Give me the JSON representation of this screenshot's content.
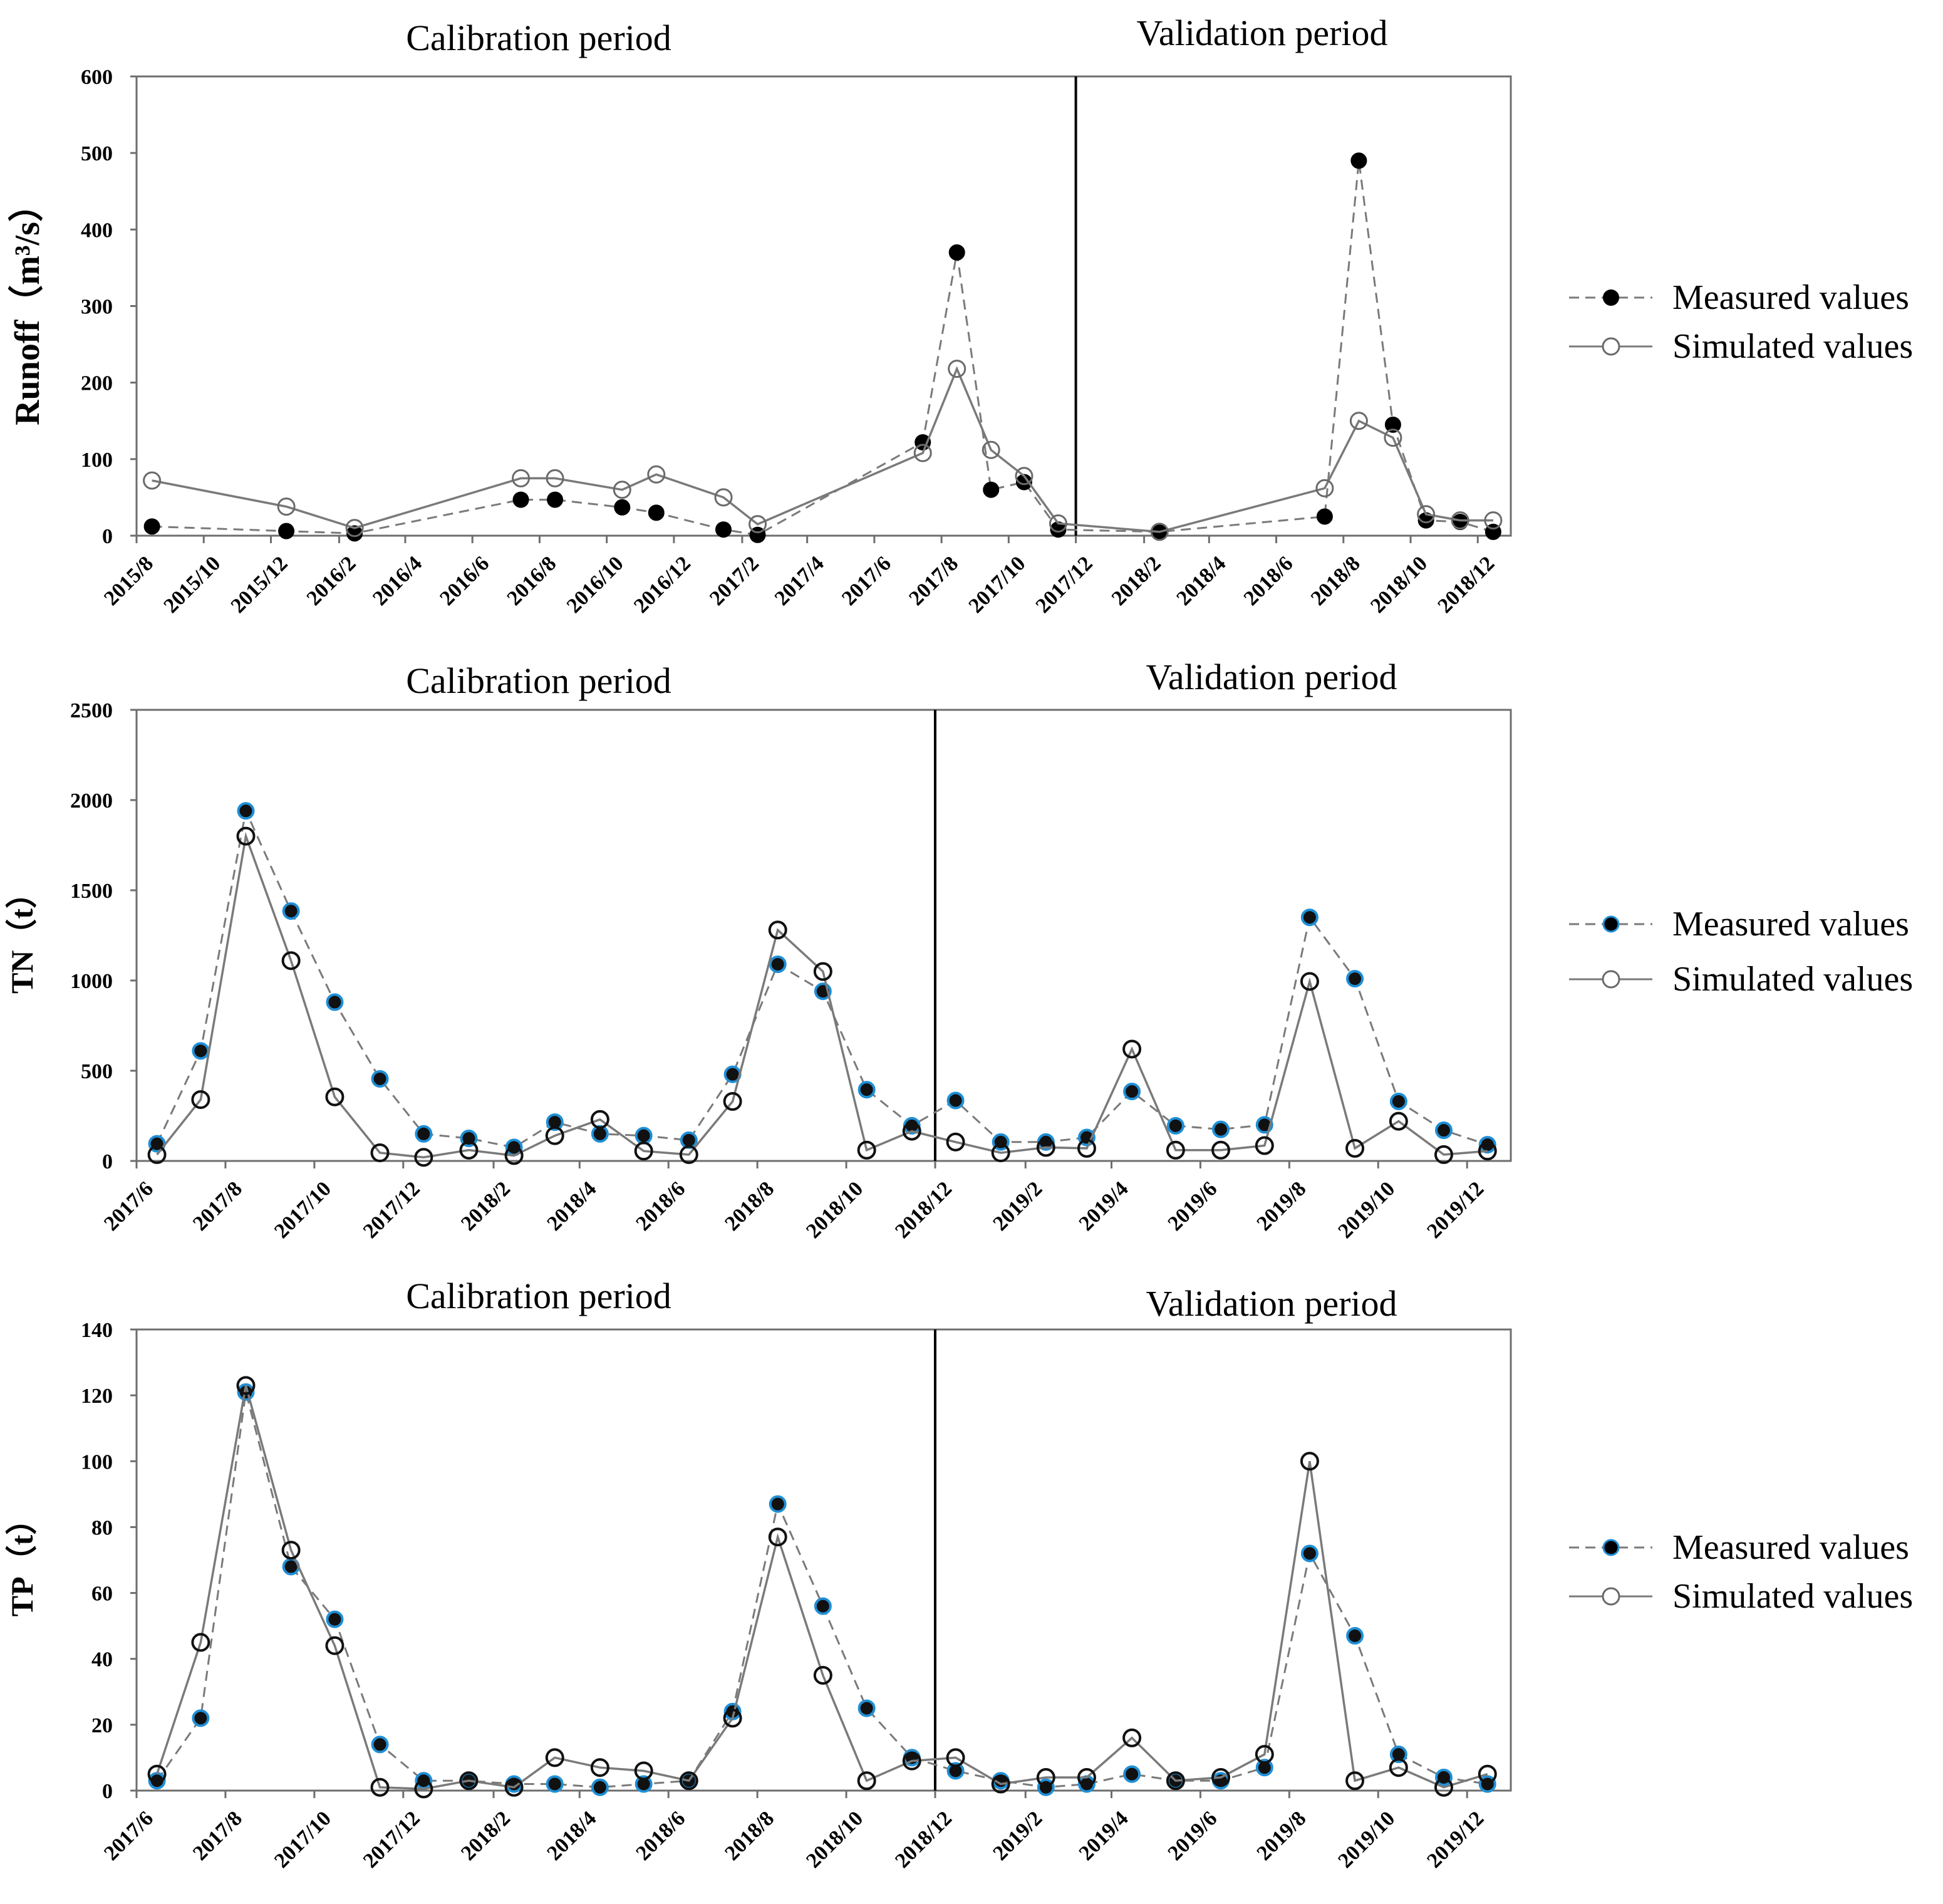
{
  "chart_data": [
    {
      "type": "line",
      "ylabel": "Runoff（m³/s）",
      "ylim": [
        0,
        600
      ],
      "yticks": [
        "0",
        "100",
        "200",
        "300",
        "400",
        "500",
        "600"
      ],
      "x_axis_range": [
        "2015-08-01",
        "2018-12-31"
      ],
      "xtick_labels": [
        "2015/8",
        "2015/10",
        "2015/12",
        "2016/2",
        "2016/4",
        "2016/6",
        "2016/8",
        "2016/10",
        "2016/12",
        "2017/2",
        "2017/4",
        "2017/6",
        "2017/8",
        "2017/10",
        "2017/12",
        "2018/2",
        "2018/4",
        "2018/6",
        "2018/8",
        "2018/10",
        "2018/12"
      ],
      "xtick_dates": [
        "2015-08-01",
        "2015-10-01",
        "2015-12-01",
        "2016-02-01",
        "2016-04-01",
        "2016-06-01",
        "2016-08-01",
        "2016-10-01",
        "2016-12-01",
        "2017-02-01",
        "2017-04-01",
        "2017-06-01",
        "2017-08-01",
        "2017-10-01",
        "2017-12-01",
        "2018-02-01",
        "2018-04-01",
        "2018-06-01",
        "2018-08-01",
        "2018-10-01",
        "2018-12-01"
      ],
      "divider_date": "2017-12-01",
      "period_labels": [
        "Calibration period",
        "Validation period"
      ],
      "legend": {
        "placement": "right",
        "entries": [
          "Measured values",
          "Simulated values"
        ]
      },
      "grid": false,
      "series": [
        {
          "name": "Measured values",
          "style": "dashed-filled",
          "x": [
            "2015-08-15",
            "2015-12-15",
            "2016-02-15",
            "2016-07-15",
            "2016-08-15",
            "2016-10-15",
            "2016-11-15",
            "2017-01-15",
            "2017-02-15",
            "2017-07-15",
            "2017-08-15",
            "2017-09-15",
            "2017-10-15",
            "2017-11-15",
            "2018-02-15",
            "2018-07-15",
            "2018-08-15",
            "2018-09-15",
            "2018-10-15",
            "2018-11-15",
            "2018-12-15"
          ],
          "y": [
            12,
            6,
            3,
            47,
            47,
            37,
            30,
            8,
            1,
            122,
            370,
            60,
            70,
            8,
            5,
            25,
            490,
            145,
            20,
            18,
            5
          ]
        },
        {
          "name": "Simulated values",
          "style": "solid-open",
          "x": [
            "2015-08-15",
            "2015-12-15",
            "2016-02-15",
            "2016-07-15",
            "2016-08-15",
            "2016-10-15",
            "2016-11-15",
            "2017-01-15",
            "2017-02-15",
            "2017-07-15",
            "2017-08-15",
            "2017-09-15",
            "2017-10-15",
            "2017-11-15",
            "2018-02-15",
            "2018-07-15",
            "2018-08-15",
            "2018-09-15",
            "2018-10-15",
            "2018-11-15",
            "2018-12-15"
          ],
          "y": [
            72,
            38,
            10,
            75,
            75,
            60,
            80,
            50,
            15,
            108,
            218,
            112,
            78,
            16,
            5,
            62,
            150,
            128,
            28,
            20,
            20
          ]
        }
      ]
    },
    {
      "type": "line",
      "ylabel": "TN（t）",
      "ylim": [
        0,
        2500
      ],
      "yticks": [
        "0",
        "500",
        "1000",
        "1500",
        "2000",
        "2500"
      ],
      "x_axis_range": [
        "2017-06-01",
        "2019-12-31"
      ],
      "xtick_labels": [
        "2017/6",
        "2017/8",
        "2017/10",
        "2017/12",
        "2018/2",
        "2018/4",
        "2018/6",
        "2018/8",
        "2018/10",
        "2018/12",
        "2019/2",
        "2019/4",
        "2019/6",
        "2019/8",
        "2019/10",
        "2019/12"
      ],
      "xtick_dates": [
        "2017-06-01",
        "2017-08-01",
        "2017-10-01",
        "2017-12-01",
        "2018-02-01",
        "2018-04-01",
        "2018-06-01",
        "2018-08-01",
        "2018-10-01",
        "2018-12-01",
        "2019-02-01",
        "2019-04-01",
        "2019-06-01",
        "2019-08-01",
        "2019-10-01",
        "2019-12-01"
      ],
      "divider_date": "2018-12-01",
      "period_labels": [
        "Calibration period",
        "Validation period"
      ],
      "legend": {
        "placement": "right",
        "entries": [
          "Measured values",
          "Simulated values"
        ]
      },
      "grid": false,
      "series": [
        {
          "name": "Measured values",
          "style": "dashed-filled-blue",
          "x": [
            "2017-06-15",
            "2017-07-15",
            "2017-08-15",
            "2017-09-15",
            "2017-10-15",
            "2017-11-15",
            "2017-12-15",
            "2018-01-15",
            "2018-02-15",
            "2018-03-15",
            "2018-04-15",
            "2018-05-15",
            "2018-06-15",
            "2018-07-15",
            "2018-08-15",
            "2018-09-15",
            "2018-10-15",
            "2018-11-15",
            "2018-12-15",
            "2019-01-15",
            "2019-02-15",
            "2019-03-15",
            "2019-04-15",
            "2019-05-15",
            "2019-06-15",
            "2019-07-15",
            "2019-08-15",
            "2019-09-15",
            "2019-10-15",
            "2019-11-15",
            "2019-12-15"
          ],
          "y": [
            95,
            610,
            1940,
            1385,
            880,
            455,
            150,
            125,
            75,
            215,
            150,
            140,
            115,
            480,
            1090,
            940,
            395,
            195,
            335,
            105,
            105,
            130,
            385,
            195,
            175,
            200,
            1350,
            1010,
            330,
            170,
            90
          ]
        },
        {
          "name": "Simulated values",
          "style": "solid-open",
          "x": [
            "2017-06-15",
            "2017-07-15",
            "2017-08-15",
            "2017-09-15",
            "2017-10-15",
            "2017-11-15",
            "2017-12-15",
            "2018-01-15",
            "2018-02-15",
            "2018-03-15",
            "2018-04-15",
            "2018-05-15",
            "2018-06-15",
            "2018-07-15",
            "2018-08-15",
            "2018-09-15",
            "2018-10-15",
            "2018-11-15",
            "2018-12-15",
            "2019-01-15",
            "2019-02-15",
            "2019-03-15",
            "2019-04-15",
            "2019-05-15",
            "2019-06-15",
            "2019-07-15",
            "2019-08-15",
            "2019-09-15",
            "2019-10-15",
            "2019-11-15",
            "2019-12-15"
          ],
          "y": [
            35,
            340,
            1800,
            1110,
            355,
            45,
            20,
            60,
            30,
            140,
            230,
            55,
            35,
            330,
            1280,
            1050,
            60,
            165,
            105,
            45,
            75,
            70,
            620,
            60,
            60,
            85,
            995,
            70,
            220,
            35,
            55
          ]
        }
      ]
    },
    {
      "type": "line",
      "ylabel": "TP（t）",
      "ylim": [
        0,
        140
      ],
      "yticks": [
        "0",
        "20",
        "40",
        "60",
        "80",
        "100",
        "120",
        "140"
      ],
      "x_axis_range": [
        "2017-06-01",
        "2019-12-31"
      ],
      "xtick_labels": [
        "2017/6",
        "2017/8",
        "2017/10",
        "2017/12",
        "2018/2",
        "2018/4",
        "2018/6",
        "2018/8",
        "2018/10",
        "2018/12",
        "2019/2",
        "2019/4",
        "2019/6",
        "2019/8",
        "2019/10",
        "2019/12"
      ],
      "xtick_dates": [
        "2017-06-01",
        "2017-08-01",
        "2017-10-01",
        "2017-12-01",
        "2018-02-01",
        "2018-04-01",
        "2018-06-01",
        "2018-08-01",
        "2018-10-01",
        "2018-12-01",
        "2019-02-01",
        "2019-04-01",
        "2019-06-01",
        "2019-08-01",
        "2019-10-01",
        "2019-12-01"
      ],
      "divider_date": "2018-12-01",
      "period_labels": [
        "Calibration period",
        "Validation period"
      ],
      "legend": {
        "placement": "right",
        "entries": [
          "Measured values",
          "Simulated values"
        ]
      },
      "grid": false,
      "series": [
        {
          "name": "Measured values",
          "style": "dashed-filled-blue",
          "x": [
            "2017-06-15",
            "2017-07-15",
            "2017-08-15",
            "2017-09-15",
            "2017-10-15",
            "2017-11-15",
            "2017-12-15",
            "2018-01-15",
            "2018-02-15",
            "2018-03-15",
            "2018-04-15",
            "2018-05-15",
            "2018-06-15",
            "2018-07-15",
            "2018-08-15",
            "2018-09-15",
            "2018-10-15",
            "2018-11-15",
            "2018-12-15",
            "2019-01-15",
            "2019-02-15",
            "2019-03-15",
            "2019-04-15",
            "2019-05-15",
            "2019-06-15",
            "2019-07-15",
            "2019-08-15",
            "2019-09-15",
            "2019-10-15",
            "2019-11-15",
            "2019-12-15"
          ],
          "y": [
            3,
            22,
            121,
            68,
            52,
            14,
            3,
            3,
            2,
            2,
            1,
            2,
            3,
            24,
            87,
            56,
            25,
            10,
            6,
            3,
            1,
            2,
            5,
            3,
            3,
            7,
            72,
            47,
            11,
            4,
            2
          ]
        },
        {
          "name": "Simulated values",
          "style": "solid-open",
          "x": [
            "2017-06-15",
            "2017-07-15",
            "2017-08-15",
            "2017-09-15",
            "2017-10-15",
            "2017-11-15",
            "2017-12-15",
            "2018-01-15",
            "2018-02-15",
            "2018-03-15",
            "2018-04-15",
            "2018-05-15",
            "2018-06-15",
            "2018-07-15",
            "2018-08-15",
            "2018-09-15",
            "2018-10-15",
            "2018-11-15",
            "2018-12-15",
            "2019-01-15",
            "2019-02-15",
            "2019-03-15",
            "2019-04-15",
            "2019-05-15",
            "2019-06-15",
            "2019-07-15",
            "2019-08-15",
            "2019-09-15",
            "2019-10-15",
            "2019-11-15",
            "2019-12-15"
          ],
          "y": [
            5,
            45,
            123,
            73,
            44,
            1,
            0.5,
            3,
            1,
            10,
            7,
            6,
            3,
            22,
            77,
            35,
            3,
            9,
            10,
            2,
            4,
            4,
            16,
            3,
            4,
            11,
            100,
            3,
            7,
            1,
            5
          ]
        }
      ]
    }
  ]
}
